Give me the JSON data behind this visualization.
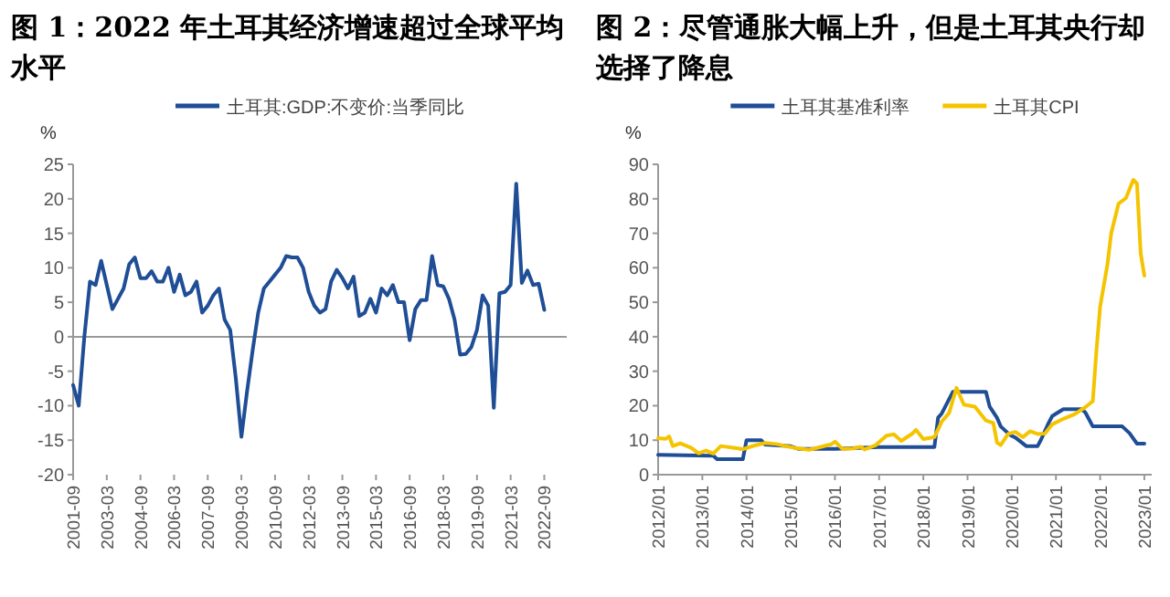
{
  "chart_data": [
    {
      "type": "line",
      "title": "图 1：2022 年土耳其经济增速超过全球平均水平",
      "ylabel": "%",
      "legend": "top",
      "categories": [
        "2001-09",
        null,
        null,
        null,
        null,
        null,
        "2003-03",
        null,
        null,
        null,
        null,
        null,
        "2004-09",
        null,
        null,
        null,
        null,
        null,
        "2006-03",
        null,
        null,
        null,
        null,
        null,
        "2007-09",
        null,
        null,
        null,
        null,
        null,
        "2009-03",
        null,
        null,
        null,
        null,
        null,
        "2010-09",
        null,
        null,
        null,
        null,
        null,
        "2012-03",
        null,
        null,
        null,
        null,
        null,
        "2013-09",
        null,
        null,
        null,
        null,
        null,
        "2015-03",
        null,
        null,
        null,
        null,
        null,
        "2016-09",
        null,
        null,
        null,
        null,
        null,
        "2018-03",
        null,
        null,
        null,
        null,
        null,
        "2019-09",
        null,
        null,
        null,
        null,
        null,
        "2021-03",
        null,
        null,
        null,
        null,
        null,
        "2022-09"
      ],
      "series": [
        {
          "name": "土耳其:GDP:不变价:当季同比",
          "color": "#1f4e96",
          "values": [
            -7,
            -10,
            0,
            8,
            7.5,
            11,
            7.5,
            4,
            5.5,
            7,
            10.5,
            11.5,
            8.5,
            8.5,
            9.5,
            8,
            8,
            10,
            6.5,
            9,
            6,
            6.5,
            8,
            3.5,
            4.5,
            6,
            7,
            2.5,
            1,
            -6,
            -14.5,
            -8,
            -2,
            3.5,
            7,
            8,
            9,
            10,
            11.7,
            11.5,
            11.5,
            10,
            6.5,
            4.5,
            3.5,
            4,
            8,
            9.7,
            8.5,
            7,
            8.7,
            3,
            3.5,
            5.5,
            3.5,
            7,
            6,
            7.5,
            5,
            5,
            -0.5,
            4,
            5.3,
            5.3,
            11.7,
            7.5,
            7.3,
            5.5,
            2.5,
            -2.6,
            -2.5,
            -1.5,
            1,
            6,
            4.5,
            -10.3,
            6.3,
            6.5,
            7.5,
            22.2,
            7.8,
            9.6,
            7.5,
            7.7,
            3.9
          ]
        }
      ],
      "ylim": [
        -20,
        25
      ],
      "yticks": [
        -20,
        -15,
        -10,
        -5,
        0,
        5,
        10,
        15,
        20,
        25
      ]
    },
    {
      "type": "line",
      "title": "图 2：尽管通胀大幅上升，但是土耳其央行却选择了降息",
      "ylabel": "%",
      "legend": "top",
      "series": [
        {
          "name": "土耳其基准利率",
          "color": "#1f4e96",
          "x": [
            "2012-01",
            "2013-04",
            "2013-05",
            "2013-12",
            "2014-01",
            "2014-05",
            "2014-06",
            "2015-01",
            "2015-03",
            "2016-01",
            "2017-01",
            "2018-04",
            "2018-05",
            "2018-06",
            "2018-09",
            "2019-06",
            "2019-07",
            "2019-09",
            "2019-10",
            "2019-12",
            "2020-01",
            "2020-02",
            "2020-05",
            "2020-08",
            "2020-09",
            "2020-11",
            "2020-12",
            "2021-03",
            "2021-08",
            "2021-09",
            "2021-10",
            "2021-11",
            "2022-07",
            "2022-08",
            "2022-09",
            "2022-10",
            "2022-11",
            "2023-01"
          ],
          "values": [
            5.75,
            5.5,
            4.5,
            4.5,
            10,
            10,
            8.75,
            8.25,
            7.5,
            7.5,
            8,
            8,
            16.5,
            17.75,
            24,
            24,
            19.75,
            16.5,
            14,
            12,
            11.25,
            10.75,
            8.25,
            8.25,
            10.25,
            15,
            17,
            19,
            19,
            18,
            16,
            14,
            14,
            13,
            12,
            10.5,
            9,
            9
          ]
        },
        {
          "name": "土耳其CPI",
          "color": "#f5c400",
          "x": [
            "2012-01",
            "2012-03",
            "2012-04",
            "2012-05",
            "2012-07",
            "2012-10",
            "2012-12",
            "2013-02",
            "2013-04",
            "2013-06",
            "2013-09",
            "2013-12",
            "2014-03",
            "2014-06",
            "2014-09",
            "2014-12",
            "2015-03",
            "2015-06",
            "2015-09",
            "2015-12",
            "2016-01",
            "2016-03",
            "2016-06",
            "2016-08",
            "2016-09",
            "2016-12",
            "2017-03",
            "2017-05",
            "2017-07",
            "2017-10",
            "2017-11",
            "2018-01",
            "2018-04",
            "2018-06",
            "2018-08",
            "2018-10",
            "2018-12",
            "2019-03",
            "2019-06",
            "2019-08",
            "2019-09",
            "2019-10",
            "2019-12",
            "2020-02",
            "2020-04",
            "2020-06",
            "2020-08",
            "2020-10",
            "2020-12",
            "2021-03",
            "2021-06",
            "2021-09",
            "2021-11",
            "2021-12",
            "2022-01",
            "2022-03",
            "2022-04",
            "2022-06",
            "2022-08",
            "2022-10",
            "2022-11",
            "2022-12",
            "2023-01"
          ],
          "values": [
            10.6,
            10.4,
            11.1,
            8.3,
            9.1,
            7.8,
            6.2,
            7,
            6.1,
            8.3,
            7.9,
            7.4,
            8.4,
            9.2,
            8.9,
            8.2,
            7.6,
            7.2,
            8,
            8.8,
            9.6,
            7.5,
            7.6,
            8.1,
            7.3,
            8.5,
            11.3,
            11.7,
            9.8,
            11.9,
            13,
            10.3,
            10.9,
            15.4,
            17.9,
            25.2,
            20.3,
            19.7,
            15.7,
            15,
            9.3,
            8.6,
            11.8,
            12.4,
            10.9,
            12.6,
            11.8,
            11.9,
            14.6,
            16.2,
            17.5,
            19.6,
            21.3,
            36.1,
            48.7,
            61.1,
            70,
            78.6,
            80.2,
            85.5,
            84.4,
            64.3,
            57.7
          ]
        }
      ],
      "xlim": [
        "2012-01",
        "2023-03"
      ],
      "xticks": [
        {
          "value": "2012-01",
          "label": "2012/01"
        },
        {
          "value": "2013-01",
          "label": "2013/01"
        },
        {
          "value": "2014-01",
          "label": "2014/01"
        },
        {
          "value": "2015-01",
          "label": "2015/01"
        },
        {
          "value": "2016-01",
          "label": "2016/01"
        },
        {
          "value": "2017-01",
          "label": "2017/01"
        },
        {
          "value": "2018-01",
          "label": "2018/01"
        },
        {
          "value": "2019-01",
          "label": "2019/01"
        },
        {
          "value": "2020-01",
          "label": "2020/01"
        },
        {
          "value": "2021-01",
          "label": "2021/01"
        },
        {
          "value": "2022-01",
          "label": "2022/01"
        },
        {
          "value": "2023-01",
          "label": "2023/01"
        }
      ],
      "ylim": [
        0,
        90
      ],
      "yticks": [
        0,
        10,
        20,
        30,
        40,
        50,
        60,
        70,
        80,
        90
      ]
    }
  ]
}
